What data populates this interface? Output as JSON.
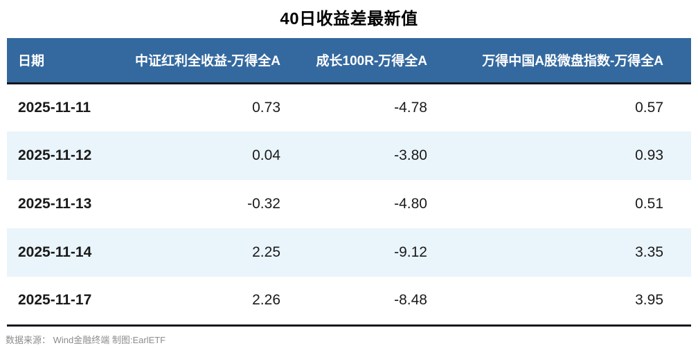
{
  "chart_data": {
    "type": "table",
    "title": "40日收益差最新值",
    "columns": [
      "日期",
      "中证红利全收益-万得全A",
      "成长100R-万得全A",
      "万得中国A股微盘指数-万得全A"
    ],
    "rows": [
      [
        "2025-11-11",
        "0.73",
        "-4.78",
        "0.57"
      ],
      [
        "2025-11-12",
        "0.04",
        "-3.80",
        "0.93"
      ],
      [
        "2025-11-13",
        "-0.32",
        "-4.80",
        "0.51"
      ],
      [
        "2025-11-14",
        "2.25",
        "-9.12",
        "3.35"
      ],
      [
        "2025-11-17",
        "2.26",
        "-8.48",
        "3.95"
      ]
    ],
    "layout": {
      "striped": true,
      "numeric_alignment": "right",
      "date_alignment": "left"
    }
  },
  "footer": {
    "source_note": "数据来源： Wind金融终端 制图:EarlETF"
  },
  "colors": {
    "header_bg": "#34699F",
    "header_text": "#FFFFFF",
    "row_alt_bg": "#EAF4FB",
    "row_bg": "#FFFFFF",
    "border": "#15151E",
    "text": "#1A1A1A",
    "title_color": "#000000",
    "footer_text": "#8C8C8C"
  }
}
